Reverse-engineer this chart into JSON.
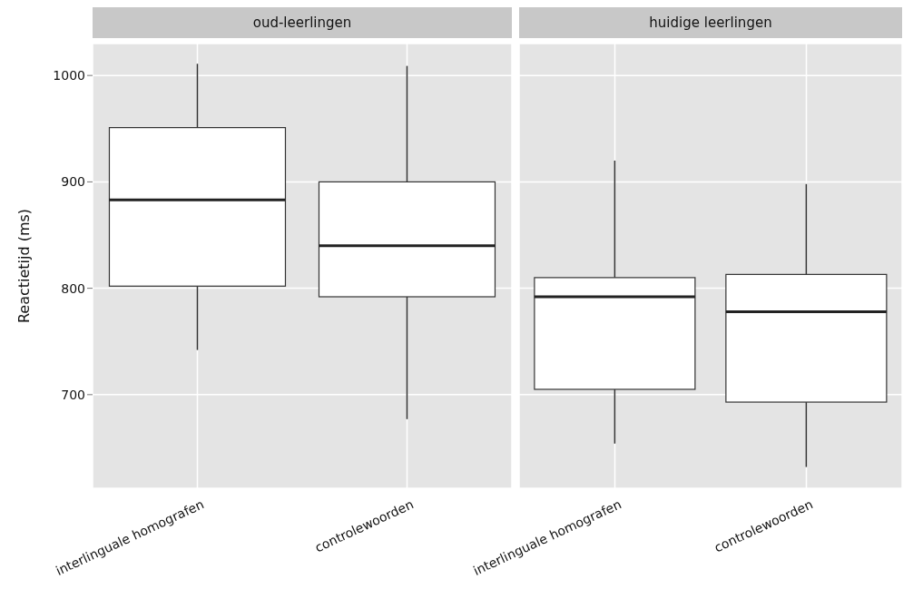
{
  "chart_data": [
    {
      "type": "box",
      "title": "oud-leerlingen",
      "ylabel": "Reactietijd (ms)",
      "categories": [
        "interlinguale homografen",
        "controlewoorden"
      ],
      "boxes": [
        {
          "low": 742,
          "q1": 802,
          "median": 883,
          "q3": 951,
          "high": 1011
        },
        {
          "low": 677,
          "q1": 792,
          "median": 840,
          "q3": 900,
          "high": 1009
        }
      ],
      "ylim": [
        612,
        1030
      ],
      "yticks": [
        700,
        800,
        900,
        1000
      ],
      "grid": true
    },
    {
      "type": "box",
      "title": "huidige leerlingen",
      "categories": [
        "interlinguale homografen",
        "controlewoorden"
      ],
      "boxes": [
        {
          "low": 654,
          "q1": 705,
          "median": 792,
          "q3": 810,
          "high": 920
        },
        {
          "low": 632,
          "q1": 693,
          "median": 778,
          "q3": 813,
          "high": 898
        }
      ],
      "ylim": [
        612,
        1030
      ],
      "yticks": [
        700,
        800,
        900,
        1000
      ],
      "grid": true,
      "tick_labels": "x"
    }
  ]
}
